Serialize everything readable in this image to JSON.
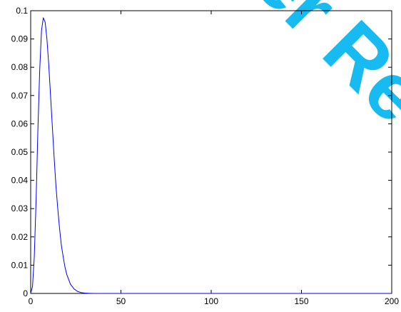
{
  "watermark": {
    "text": "Peer Review",
    "visible_text": "er Rev",
    "color": "#00b4f0"
  },
  "chart_data": {
    "type": "line",
    "title": "",
    "xlabel": "",
    "ylabel": "",
    "xlim": [
      0,
      200
    ],
    "ylim": [
      0,
      0.1
    ],
    "xticks": [
      0,
      50,
      100,
      150,
      200
    ],
    "xtick_labels": [
      "0",
      "50",
      "100",
      "150",
      "200"
    ],
    "yticks": [
      0,
      0.01,
      0.02,
      0.03,
      0.04,
      0.05,
      0.06,
      0.07,
      0.08,
      0.09,
      0.1
    ],
    "ytick_labels": [
      "0",
      "0.01",
      "0.02",
      "0.03",
      "0.04",
      "0.05",
      "0.06",
      "0.07",
      "0.08",
      "0.09",
      "0.1"
    ],
    "grid": false,
    "line_color": "#0000ff",
    "series": [
      {
        "x": [
          0,
          1,
          2,
          3,
          4,
          5,
          6,
          7,
          8,
          9,
          10,
          11,
          12,
          13,
          14,
          15,
          16,
          17,
          18,
          19,
          20,
          22,
          24,
          26,
          28,
          30,
          32,
          35,
          40,
          50,
          75,
          100,
          125,
          150,
          175,
          200
        ],
        "values": [
          0,
          0.0024,
          0.013,
          0.033,
          0.058,
          0.079,
          0.093,
          0.0975,
          0.096,
          0.09,
          0.081,
          0.07,
          0.059,
          0.048,
          0.038,
          0.03,
          0.023,
          0.017,
          0.013,
          0.0093,
          0.0067,
          0.0033,
          0.0016,
          0.0007,
          0.0003,
          0.00013,
          5e-05,
          1e-05,
          0,
          0,
          0,
          0,
          0,
          0,
          0,
          0
        ]
      }
    ]
  }
}
